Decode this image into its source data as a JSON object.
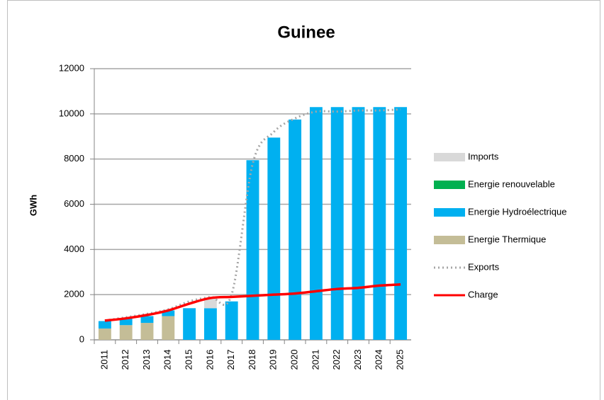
{
  "chart_data": {
    "type": "bar",
    "title": "Guinee",
    "y_label": "GWh",
    "categories": [
      "2011",
      "2012",
      "2013",
      "2014",
      "2015",
      "2016",
      "2017",
      "2018",
      "2019",
      "2020",
      "2021",
      "2022",
      "2023",
      "2024",
      "2025"
    ],
    "series": [
      {
        "name": "Imports",
        "type": "bar",
        "color": "#d9d9d9",
        "values": [
          0,
          0,
          0,
          0,
          0,
          450,
          0,
          0,
          0,
          0,
          0,
          0,
          0,
          0,
          0
        ]
      },
      {
        "name": "Energie renouvelable",
        "type": "bar",
        "color": "#00b050",
        "values": [
          0,
          0,
          0,
          0,
          0,
          0,
          0,
          0,
          0,
          0,
          0,
          0,
          0,
          0,
          0
        ]
      },
      {
        "name": "Energie Hydroélectrique",
        "type": "bar",
        "color": "#00b0f0",
        "values": [
          330,
          300,
          300,
          250,
          1400,
          1400,
          1700,
          7950,
          8950,
          9750,
          10300,
          10300,
          10300,
          10300,
          10300
        ]
      },
      {
        "name": "Energie Thermique",
        "type": "bar",
        "color": "#c4bd97",
        "values": [
          500,
          650,
          750,
          1050,
          0,
          0,
          0,
          0,
          0,
          0,
          0,
          0,
          0,
          0,
          0
        ]
      },
      {
        "name": "Exports",
        "type": "line",
        "style": "dotted",
        "color": "#a6a6a6",
        "values": [
          850,
          1000,
          1150,
          1350,
          1700,
          1900,
          2000,
          7800,
          9200,
          9800,
          10100,
          10100,
          10150,
          10150,
          10200
        ]
      },
      {
        "name": "Charge",
        "type": "line",
        "style": "solid",
        "color": "#ff0000",
        "values": [
          850,
          950,
          1100,
          1300,
          1600,
          1850,
          1900,
          1950,
          2000,
          2050,
          2150,
          2250,
          2300,
          2400,
          2450
        ]
      }
    ],
    "ylim": [
      0,
      12000
    ],
    "yticks": [
      0,
      2000,
      4000,
      6000,
      8000,
      10000,
      12000
    ],
    "grid": true,
    "legend": "right"
  }
}
